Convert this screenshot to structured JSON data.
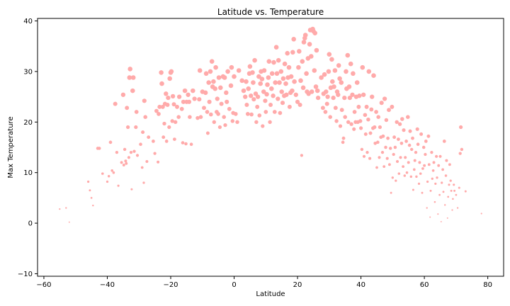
{
  "chart_data": {
    "type": "scatter",
    "title": "Latitude vs. Temperature",
    "xlabel": "Latitude",
    "ylabel": "Max Temperature",
    "xlim": [
      -62,
      85
    ],
    "ylim": [
      -10.5,
      40.5
    ],
    "xticks": [
      -60,
      -40,
      -20,
      0,
      20,
      40,
      60,
      80
    ],
    "yticks": [
      -10,
      0,
      10,
      20,
      30,
      40
    ],
    "grid": false,
    "point_color": "#ffaaaa",
    "points": [
      [
        -55,
        2.8
      ],
      [
        -53,
        3.0
      ],
      [
        -52,
        0.2
      ],
      [
        -46,
        8.2
      ],
      [
        -45.5,
        6.5
      ],
      [
        -45,
        5
      ],
      [
        -44.5,
        3.5
      ],
      [
        -43,
        14.8
      ],
      [
        -42.5,
        14.8
      ],
      [
        -41.5,
        9.8
      ],
      [
        -40,
        8.2
      ],
      [
        -39.5,
        9.3
      ],
      [
        -39,
        16
      ],
      [
        -38.5,
        10.4
      ],
      [
        -38,
        10
      ],
      [
        -37.5,
        23.6
      ],
      [
        -37,
        14.0
      ],
      [
        -36.5,
        7.4
      ],
      [
        -35.5,
        12
      ],
      [
        -35,
        25.4
      ],
      [
        -34.8,
        11.5
      ],
      [
        -34.5,
        14.6
      ],
      [
        -34.2,
        12.3
      ],
      [
        -34,
        11.8
      ],
      [
        -33.8,
        22.8
      ],
      [
        -33.5,
        19
      ],
      [
        -33.2,
        13
      ],
      [
        -33,
        28.8
      ],
      [
        -32.8,
        30.5
      ],
      [
        -32.5,
        14
      ],
      [
        -32.3,
        6.7
      ],
      [
        -32,
        26.2
      ],
      [
        -31.8,
        28.8
      ],
      [
        -31.5,
        14.2
      ],
      [
        -31,
        19
      ],
      [
        -30.8,
        22
      ],
      [
        -30.5,
        13.4
      ],
      [
        -29.5,
        15.6
      ],
      [
        -29,
        11
      ],
      [
        -28.8,
        18
      ],
      [
        -28.5,
        8
      ],
      [
        -28.3,
        24.2
      ],
      [
        -28,
        21
      ],
      [
        -27.5,
        12.2
      ],
      [
        -27,
        17
      ],
      [
        -25.5,
        16.2
      ],
      [
        -25,
        13.8
      ],
      [
        -24.5,
        22.2
      ],
      [
        -24,
        12.1
      ],
      [
        -23.8,
        21.6
      ],
      [
        -23.5,
        23
      ],
      [
        -23,
        29.8
      ],
      [
        -22.8,
        27.6
      ],
      [
        -22.5,
        23
      ],
      [
        -22.3,
        17
      ],
      [
        -22,
        19.7
      ],
      [
        -21.8,
        23.6
      ],
      [
        -21.5,
        25.6
      ],
      [
        -21.3,
        16.2
      ],
      [
        -21,
        23.4
      ],
      [
        -20.8,
        24.8
      ],
      [
        -20.5,
        19
      ],
      [
        -20.3,
        28.6
      ],
      [
        -20,
        29.8
      ],
      [
        -19.8,
        30
      ],
      [
        -19.5,
        20.2
      ],
      [
        -19.3,
        25.1
      ],
      [
        -19,
        23.5
      ],
      [
        -18.8,
        16.6
      ],
      [
        -18.5,
        20
      ],
      [
        -18,
        23
      ],
      [
        -17.5,
        21
      ],
      [
        -17.3,
        25
      ],
      [
        -16.5,
        22.6
      ],
      [
        -16.2,
        15.9
      ],
      [
        -16,
        24
      ],
      [
        -15.5,
        26.2
      ],
      [
        -15.2,
        15.7
      ],
      [
        -15,
        24
      ],
      [
        -14.5,
        25.4
      ],
      [
        -14.2,
        24
      ],
      [
        -14,
        21
      ],
      [
        -13.5,
        15.6
      ],
      [
        -13,
        26.2
      ],
      [
        -12.5,
        24.6
      ],
      [
        -11.5,
        20.8
      ],
      [
        -11,
        24.5
      ],
      [
        -10.8,
        30.2
      ],
      [
        -10.5,
        21
      ],
      [
        -10,
        26
      ],
      [
        -9.5,
        22.8
      ],
      [
        -9,
        25.8
      ],
      [
        -8.8,
        29.6
      ],
      [
        -8.5,
        22
      ],
      [
        -8.3,
        17.8
      ],
      [
        -8,
        27.8
      ],
      [
        -7.8,
        24
      ],
      [
        -7.5,
        30
      ],
      [
        -7.3,
        21.5
      ],
      [
        -7,
        32
      ],
      [
        -6.8,
        27
      ],
      [
        -6.5,
        28
      ],
      [
        -6.3,
        20
      ],
      [
        -6,
        26.6
      ],
      [
        -5.8,
        30.8
      ],
      [
        -5.5,
        22
      ],
      [
        -5.3,
        24.6
      ],
      [
        -5,
        21.6
      ],
      [
        -4.8,
        28.8
      ],
      [
        -4.5,
        19
      ],
      [
        -4.3,
        26.8
      ],
      [
        -4,
        23.6
      ],
      [
        -3.5,
        29
      ],
      [
        -3.2,
        21
      ],
      [
        -3,
        28.8
      ],
      [
        -2.8,
        19.4
      ],
      [
        -2.5,
        25.8
      ],
      [
        -2.3,
        24
      ],
      [
        -2,
        30
      ],
      [
        -1.5,
        22.6
      ],
      [
        -1,
        27.2
      ],
      [
        -0.8,
        30.8
      ],
      [
        -0.5,
        20.2
      ],
      [
        -0.3,
        21.8
      ],
      [
        0,
        29
      ],
      [
        0.5,
        21.6
      ],
      [
        1,
        20
      ],
      [
        1.5,
        30.2
      ],
      [
        2.5,
        28.2
      ],
      [
        3,
        26.2
      ],
      [
        3.5,
        25
      ],
      [
        3.8,
        28
      ],
      [
        4,
        23.4
      ],
      [
        4.3,
        21.6
      ],
      [
        4.5,
        26.6
      ],
      [
        4.8,
        29.6
      ],
      [
        5,
        31
      ],
      [
        5.3,
        25.2
      ],
      [
        5.5,
        21.5
      ],
      [
        5.8,
        29.8
      ],
      [
        6,
        27.8
      ],
      [
        6.2,
        24.5
      ],
      [
        6.5,
        32.2
      ],
      [
        6.8,
        25.6
      ],
      [
        7,
        20
      ],
      [
        7.3,
        23
      ],
      [
        7.5,
        25
      ],
      [
        7.8,
        29
      ],
      [
        8,
        21.3
      ],
      [
        8.3,
        27.6
      ],
      [
        8.5,
        30
      ],
      [
        8.8,
        28.5
      ],
      [
        9,
        19.2
      ],
      [
        9.3,
        26
      ],
      [
        9.5,
        30.2
      ],
      [
        9.8,
        24.2
      ],
      [
        10,
        22
      ],
      [
        10.3,
        25.5
      ],
      [
        10.5,
        27.4
      ],
      [
        10.8,
        28.8
      ],
      [
        11,
        32
      ],
      [
        11.3,
        20
      ],
      [
        11.5,
        23.4
      ],
      [
        11.8,
        26.6
      ],
      [
        12,
        29.6
      ],
      [
        12.3,
        25.2
      ],
      [
        12.5,
        31.8
      ],
      [
        12.8,
        22
      ],
      [
        13,
        27.8
      ],
      [
        13.3,
        34.8
      ],
      [
        13.5,
        29.6
      ],
      [
        13.8,
        24.6
      ],
      [
        14,
        32.2
      ],
      [
        14.3,
        27.8
      ],
      [
        14.5,
        21.8
      ],
      [
        14.8,
        30
      ],
      [
        15,
        26
      ],
      [
        15.3,
        23.8
      ],
      [
        15.5,
        28.6
      ],
      [
        15.8,
        25.2
      ],
      [
        16,
        31.5
      ],
      [
        16.3,
        27.6
      ],
      [
        16.5,
        25.4
      ],
      [
        16.8,
        33.6
      ],
      [
        17,
        28.8
      ],
      [
        17.3,
        30.8
      ],
      [
        17.5,
        23
      ],
      [
        17.8,
        25.8
      ],
      [
        18,
        29
      ],
      [
        18.3,
        26.2
      ],
      [
        18.5,
        33.8
      ],
      [
        18.8,
        36.4
      ],
      [
        19,
        28
      ],
      [
        19.5,
        25.4
      ],
      [
        20,
        24
      ],
      [
        20.3,
        30.8
      ],
      [
        20.5,
        34
      ],
      [
        20.8,
        23.4
      ],
      [
        21,
        28.2
      ],
      [
        21.3,
        13.4
      ],
      [
        21.5,
        32
      ],
      [
        21.8,
        26.8
      ],
      [
        22,
        35.8
      ],
      [
        22.3,
        36.6
      ],
      [
        22.5,
        37.2
      ],
      [
        22.8,
        29.6
      ],
      [
        23,
        26
      ],
      [
        23.3,
        32.6
      ],
      [
        23.5,
        25.6
      ],
      [
        23.8,
        35.4
      ],
      [
        24,
        38.2
      ],
      [
        24.3,
        33
      ],
      [
        24.5,
        26
      ],
      [
        24.8,
        38.4
      ],
      [
        25,
        38
      ],
      [
        25.3,
        30.2
      ],
      [
        25.5,
        37.6
      ],
      [
        25.8,
        27
      ],
      [
        26,
        34.2
      ],
      [
        26.3,
        26.2
      ],
      [
        26.5,
        24.8
      ],
      [
        27.5,
        28.8
      ],
      [
        28,
        22.8
      ],
      [
        28.2,
        25.6
      ],
      [
        28.5,
        29.4
      ],
      [
        28.8,
        22
      ],
      [
        29,
        26
      ],
      [
        29.3,
        23.6
      ],
      [
        29.5,
        25
      ],
      [
        29.8,
        30
      ],
      [
        30,
        33.4
      ],
      [
        30.3,
        21
      ],
      [
        30.5,
        26.8
      ],
      [
        30.8,
        32.4
      ],
      [
        31,
        28
      ],
      [
        31.3,
        24.8
      ],
      [
        31.5,
        27
      ],
      [
        31.8,
        30.2
      ],
      [
        32,
        22.8
      ],
      [
        32.3,
        20.2
      ],
      [
        32.5,
        26
      ],
      [
        32.8,
        25.4
      ],
      [
        33,
        31.2
      ],
      [
        33.3,
        28.6
      ],
      [
        33.5,
        19.2
      ],
      [
        33.8,
        27.8
      ],
      [
        34,
        22.4
      ],
      [
        34.3,
        16
      ],
      [
        34.5,
        16.8
      ],
      [
        34.8,
        24.8
      ],
      [
        35,
        21
      ],
      [
        35.3,
        30
      ],
      [
        35.5,
        26.6
      ],
      [
        35.8,
        33.2
      ],
      [
        36,
        20
      ],
      [
        36.3,
        27
      ],
      [
        36.5,
        24.8
      ],
      [
        36.8,
        31.5
      ],
      [
        37,
        19.6
      ],
      [
        37.3,
        25.4
      ],
      [
        37.5,
        29.6
      ],
      [
        37.8,
        18.6
      ],
      [
        38,
        22
      ],
      [
        38.3,
        20
      ],
      [
        38.5,
        25
      ],
      [
        38.8,
        27.8
      ],
      [
        39,
        20
      ],
      [
        39.3,
        23
      ],
      [
        39.5,
        25.2
      ],
      [
        39.8,
        20.2
      ],
      [
        40,
        18.8
      ],
      [
        40.3,
        14.6
      ],
      [
        40.5,
        30.8
      ],
      [
        40.8,
        25.4
      ],
      [
        41,
        13.2
      ],
      [
        41.3,
        21.4
      ],
      [
        41.5,
        17.6
      ],
      [
        41.8,
        23
      ],
      [
        42,
        14
      ],
      [
        42.3,
        20.5
      ],
      [
        42.5,
        30
      ],
      [
        42.8,
        12.8
      ],
      [
        43,
        17.8
      ],
      [
        43.3,
        22.5
      ],
      [
        43.5,
        25
      ],
      [
        43.8,
        18.8
      ],
      [
        44,
        29.2
      ],
      [
        44.3,
        19
      ],
      [
        44.5,
        15.8
      ],
      [
        44.8,
        22
      ],
      [
        45,
        11
      ],
      [
        45.3,
        16
      ],
      [
        45.5,
        21
      ],
      [
        45.8,
        13
      ],
      [
        46,
        19
      ],
      [
        46.3,
        17
      ],
      [
        46.5,
        23.8
      ],
      [
        46.8,
        14
      ],
      [
        47,
        17.2
      ],
      [
        47.3,
        11.2
      ],
      [
        47.5,
        24.6
      ],
      [
        47.8,
        15
      ],
      [
        48,
        20.4
      ],
      [
        48.3,
        12.8
      ],
      [
        48.5,
        16.8
      ],
      [
        48.8,
        22.4
      ],
      [
        49,
        11.6
      ],
      [
        49.3,
        14.8
      ],
      [
        49.5,
        6
      ],
      [
        49.8,
        23
      ],
      [
        50,
        9
      ],
      [
        50.3,
        13.6
      ],
      [
        50.5,
        17
      ],
      [
        50.8,
        15
      ],
      [
        51,
        8.4
      ],
      [
        51.3,
        20
      ],
      [
        51.5,
        12.2
      ],
      [
        51.8,
        16.6
      ],
      [
        52,
        9.8
      ],
      [
        52.3,
        19.6
      ],
      [
        52.5,
        13
      ],
      [
        52.8,
        15.8
      ],
      [
        53,
        20.6
      ],
      [
        53.3,
        11.2
      ],
      [
        53.5,
        18.4
      ],
      [
        53.8,
        9.4
      ],
      [
        54,
        13
      ],
      [
        54.3,
        16.2
      ],
      [
        54.5,
        10
      ],
      [
        54.8,
        21
      ],
      [
        55,
        12
      ],
      [
        55.3,
        15.4
      ],
      [
        55.5,
        18.2
      ],
      [
        55.8,
        9.2
      ],
      [
        56,
        14.6
      ],
      [
        56.3,
        16.8
      ],
      [
        56.5,
        6.6
      ],
      [
        56.8,
        10.6
      ],
      [
        57,
        12.4
      ],
      [
        57.3,
        14
      ],
      [
        57.5,
        9.2
      ],
      [
        57.8,
        18.6
      ],
      [
        58,
        15.6
      ],
      [
        58.3,
        7.8
      ],
      [
        58.5,
        12
      ],
      [
        58.8,
        9.8
      ],
      [
        59,
        17.6
      ],
      [
        59.3,
        6
      ],
      [
        59.5,
        10.8
      ],
      [
        59.8,
        15
      ],
      [
        60,
        11.4
      ],
      [
        60.3,
        13.6
      ],
      [
        60.5,
        16.2
      ],
      [
        60.8,
        3
      ],
      [
        61,
        8.2
      ],
      [
        61.3,
        17.2
      ],
      [
        61.5,
        11.6
      ],
      [
        61.8,
        1.2
      ],
      [
        62,
        6.4
      ],
      [
        62.3,
        14
      ],
      [
        62.5,
        8.8
      ],
      [
        62.8,
        10.4
      ],
      [
        63,
        12
      ],
      [
        63.3,
        4.2
      ],
      [
        63.5,
        7.8
      ],
      [
        63.8,
        13.2
      ],
      [
        64,
        9
      ],
      [
        64.3,
        1.8
      ],
      [
        64.5,
        11.4
      ],
      [
        64.8,
        5.6
      ],
      [
        65,
        13.2
      ],
      [
        65.3,
        0.3
      ],
      [
        65.5,
        8
      ],
      [
        65.8,
        10.6
      ],
      [
        66,
        6.2
      ],
      [
        66.3,
        16.2
      ],
      [
        66.5,
        3.6
      ],
      [
        66.8,
        9.4
      ],
      [
        67,
        12.4
      ],
      [
        67.3,
        1
      ],
      [
        67.5,
        5.2
      ],
      [
        67.8,
        7.6
      ],
      [
        68,
        11.6
      ],
      [
        68.3,
        8.4
      ],
      [
        68.5,
        6.4
      ],
      [
        68.8,
        2.6
      ],
      [
        69,
        4.8
      ],
      [
        69.3,
        7.6
      ],
      [
        69.5,
        6.4
      ],
      [
        70,
        5.6
      ],
      [
        70.5,
        3
      ],
      [
        71,
        7
      ],
      [
        71.3,
        13.8
      ],
      [
        71.5,
        19
      ],
      [
        71.8,
        14.6
      ],
      [
        73,
        6.3
      ],
      [
        78,
        1.9
      ]
    ]
  }
}
